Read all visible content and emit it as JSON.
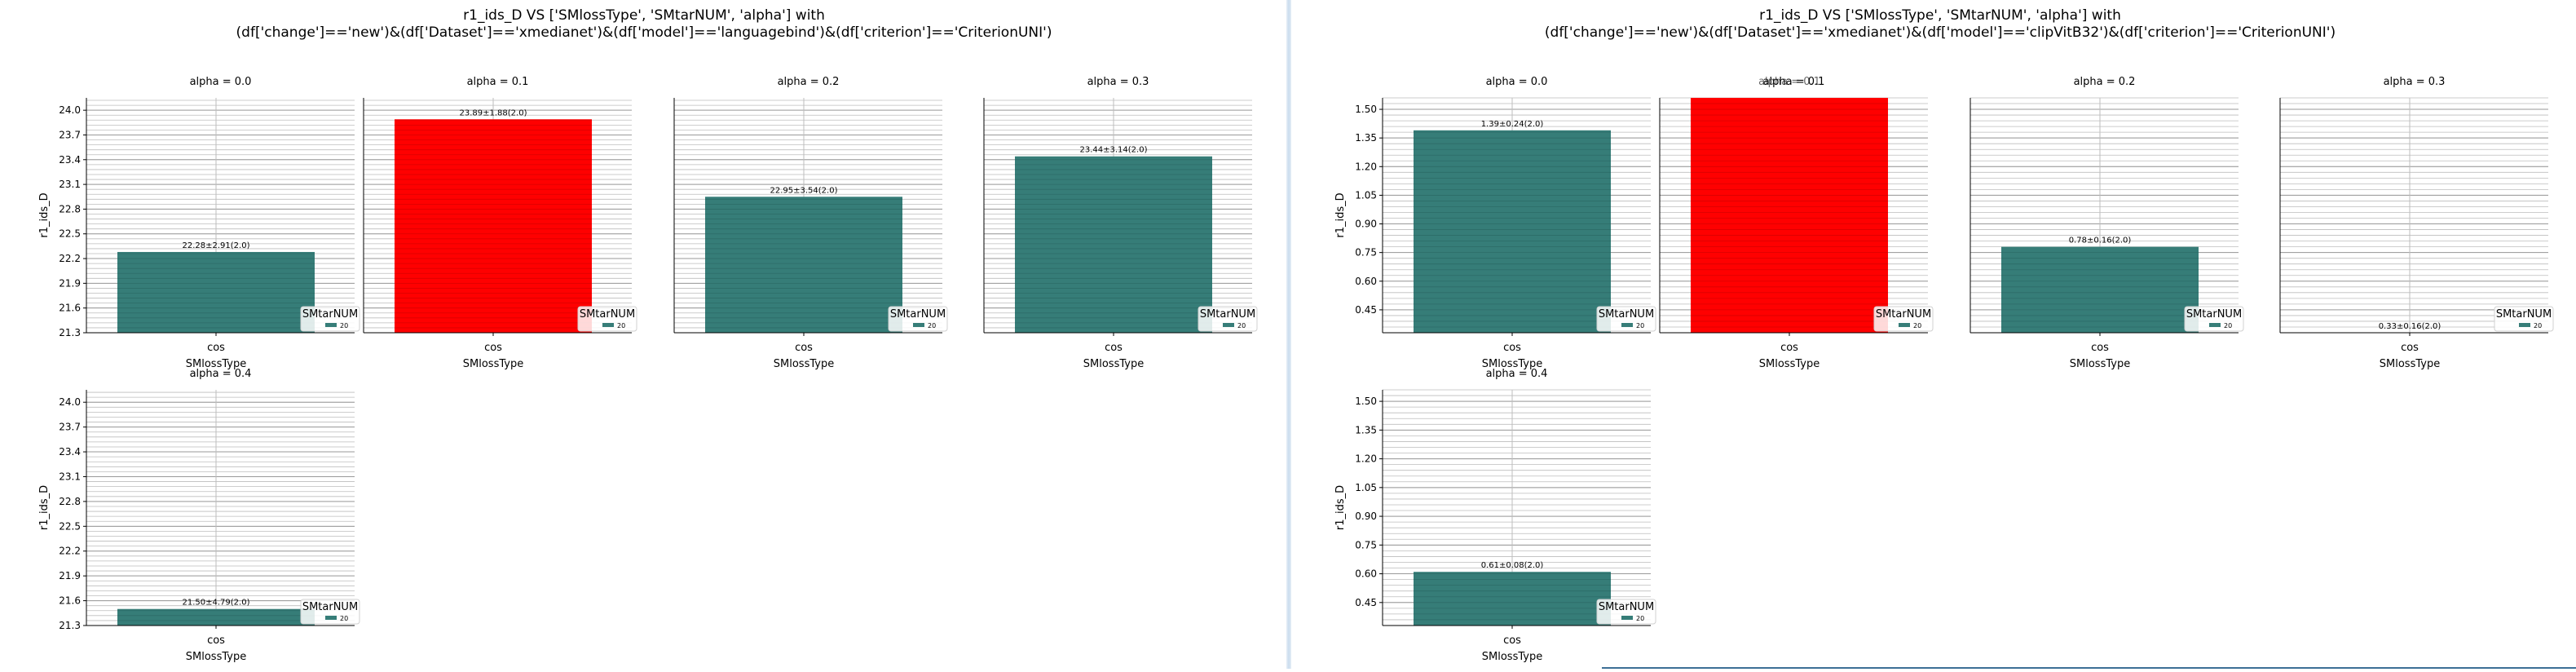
{
  "chart_data": [
    {
      "type": "bar",
      "title": "r1_ids_D VS ['SMlossType', 'SMtarNUM', 'alpha'] with\n(df['change']=='new')&(df['Dataset']=='xmedianet')&(df['model']=='languagebind')&(df['criterion']=='CriterionUNI')",
      "ylabel": "r1_ids_D",
      "xlabel": "SMlossType",
      "ylim": [
        21.3,
        24.15
      ],
      "yticks": [
        "21.3",
        "21.6",
        "21.9",
        "22.2",
        "22.5",
        "22.8",
        "23.1",
        "23.4",
        "23.7",
        "24.0"
      ],
      "legend_title": "SMtarNUM",
      "legend_label": "20",
      "grid": true,
      "legend_position": "lower-right",
      "colors": {
        "normal": "#367d78",
        "best": "#ff0000"
      },
      "panels": [
        {
          "title": "alpha = 0.0",
          "category": "cos",
          "value": 22.28,
          "label": "22.28±2.91(2.0)",
          "best": false
        },
        {
          "title": "alpha = 0.1",
          "category": "cos",
          "value": 23.89,
          "label": "23.89±1.88(2.0)",
          "best": true
        },
        {
          "title": "alpha = 0.2",
          "category": "cos",
          "value": 22.95,
          "label": "22.95±3.54(2.0)",
          "best": false
        },
        {
          "title": "alpha = 0.3",
          "category": "cos",
          "value": 23.44,
          "label": "23.44±3.14(2.0)",
          "best": false
        },
        {
          "title": "alpha = 0.4",
          "category": "cos",
          "value": 21.5,
          "label": "21.50±4.79(2.0)",
          "best": false
        }
      ]
    },
    {
      "type": "bar",
      "title": "r1_ids_D VS ['SMlossType', 'SMtarNUM', 'alpha'] with\n(df['change']=='new')&(df['Dataset']=='xmedianet')&(df['model']=='clipVitB32')&(df['criterion']=='CriterionUNI')",
      "ylabel": "r1_ids_D",
      "xlabel": "SMlossType",
      "ylim": [
        0.33,
        1.56
      ],
      "yticks": [
        "0.45",
        "0.60",
        "0.75",
        "0.90",
        "1.05",
        "1.20",
        "1.35",
        "1.50"
      ],
      "legend_title": "SMtarNUM",
      "legend_label": "20",
      "grid": true,
      "legend_position": "lower-right",
      "colors": {
        "normal": "#367d78",
        "best": "#ff0000"
      },
      "panels": [
        {
          "title": "alpha = 0.0",
          "category": "cos",
          "value": 1.39,
          "label": "1.39±0.24(2.0)",
          "best": false
        },
        {
          "title": "alpha = 0.1",
          "category": "cos",
          "value": 1.71,
          "label": "",
          "best": true
        },
        {
          "title": "alpha = 0.2",
          "category": "cos",
          "value": 0.78,
          "label": "0.78±0.16(2.0)",
          "best": false
        },
        {
          "title": "alpha = 0.3",
          "category": "cos",
          "value": 0.33,
          "label": "0.33±0.16(2.0)",
          "best": false
        },
        {
          "title": "alpha = 0.4",
          "category": "cos",
          "value": 0.61,
          "label": "0.61±0.08(2.0)",
          "best": false
        }
      ]
    }
  ]
}
